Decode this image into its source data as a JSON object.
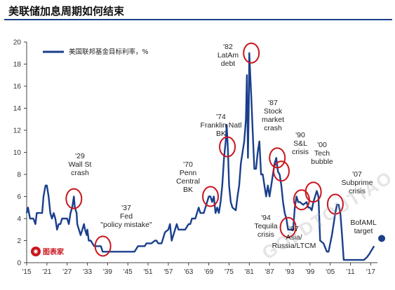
{
  "title": "美联储加息周期如何结束",
  "logo_text": "图表家",
  "watermark": "GOLDTOUTIAO",
  "colors": {
    "line": "#1a3f8c",
    "circle": "#c8161d",
    "title_rule": "#1a3f8c"
  },
  "chart_data": {
    "type": "line",
    "legend": "美国联邦基金目标利率，%",
    "ylim": [
      0,
      20
    ],
    "y_ticks": [
      0,
      2,
      4,
      6,
      8,
      10,
      12,
      14,
      16,
      18,
      20
    ],
    "xlim": [
      1915,
      2019
    ],
    "x_ticks": [
      {
        "year": 1915,
        "label": "'15"
      },
      {
        "year": 1921,
        "label": "'21"
      },
      {
        "year": 1927,
        "label": "'27"
      },
      {
        "year": 1933,
        "label": "'33"
      },
      {
        "year": 1939,
        "label": "'39"
      },
      {
        "year": 1945,
        "label": "'45"
      },
      {
        "year": 1951,
        "label": "'51"
      },
      {
        "year": 1957,
        "label": "'57"
      },
      {
        "year": 1963,
        "label": "'63"
      },
      {
        "year": 1969,
        "label": "'69"
      },
      {
        "year": 1975,
        "label": "'75"
      },
      {
        "year": 1981,
        "label": "'81"
      },
      {
        "year": 1987,
        "label": "'87"
      },
      {
        "year": 1993,
        "label": "'93"
      },
      {
        "year": 1999,
        "label": "'99"
      },
      {
        "year": 2005,
        "label": "'05"
      },
      {
        "year": 2011,
        "label": "'11"
      },
      {
        "year": 2017,
        "label": "'17"
      }
    ],
    "series": [
      {
        "x": [
          1915,
          1915.4,
          1916,
          1917,
          1917.6,
          1918,
          1919,
          1919.6,
          1920,
          1920.6,
          1921,
          1921.5,
          1922,
          1922.5,
          1923,
          1923.5,
          1924,
          1924.5,
          1925,
          1925.5,
          1926,
          1926.5,
          1927,
          1927.5,
          1928,
          1928.5,
          1929,
          1929.3,
          1929.8,
          1930,
          1930.5,
          1931,
          1931.5,
          1932,
          1932.3,
          1932.8,
          1933,
          1933.4,
          1934,
          1935,
          1936,
          1937,
          1937.5,
          1938,
          1939,
          1940,
          1941,
          1942,
          1943,
          1944,
          1945,
          1946,
          1947,
          1948,
          1948.5,
          1949,
          1950,
          1950.5,
          1951,
          1952,
          1953,
          1953.5,
          1954,
          1955,
          1955.5,
          1956,
          1957,
          1957.5,
          1958,
          1958.5,
          1959,
          1959.5,
          1960,
          1961,
          1962,
          1963,
          1963.5,
          1964,
          1965,
          1965.5,
          1966,
          1966.5,
          1967,
          1967.5,
          1968,
          1968.5,
          1969,
          1969.5,
          1970,
          1970.5,
          1971,
          1971.5,
          1972,
          1972.5,
          1973,
          1973.5,
          1974,
          1974.3,
          1974.7,
          1975,
          1975.5,
          1976,
          1977,
          1977.5,
          1978,
          1978.5,
          1979,
          1979.5,
          1980,
          1980.3,
          1980.6,
          1980.9,
          1981,
          1981.3,
          1981.6,
          1982,
          1982.5,
          1983,
          1983.5,
          1984,
          1984.5,
          1985,
          1985.5,
          1986,
          1986.5,
          1987,
          1987.5,
          1988,
          1988.5,
          1989,
          1989.5,
          1990,
          1990.5,
          1991,
          1991.5,
          1992,
          1992.5,
          1993,
          1994,
          1994.5,
          1995,
          1995.5,
          1996,
          1997,
          1998,
          1998.5,
          1999,
          1999.5,
          2000,
          2000.5,
          2001,
          2001.5,
          2002,
          2003,
          2004,
          2004.5,
          2005,
          2005.5,
          2006,
          2006.5,
          2007,
          2007.5,
          2008,
          2008.5,
          2009,
          2010,
          2011,
          2012,
          2013,
          2014,
          2015,
          2015.9,
          2016.5,
          2017,
          2017.5,
          2018
        ],
        "y": [
          4.5,
          5,
          4,
          4,
          3.5,
          4.5,
          4.5,
          4.5,
          6,
          7,
          7,
          6,
          4.5,
          4,
          4.5,
          4,
          3,
          3.5,
          3.5,
          4,
          4,
          4,
          4,
          3.5,
          4.5,
          5,
          6,
          5,
          4.5,
          3.5,
          3,
          2.5,
          3,
          3.5,
          3,
          2.5,
          3,
          2,
          2,
          1.5,
          1.5,
          1.5,
          1,
          1,
          1,
          1,
          1,
          1,
          1,
          1,
          1,
          1,
          1,
          1.5,
          1.5,
          1.5,
          1.5,
          1.75,
          1.75,
          1.75,
          2,
          2,
          1.75,
          1.75,
          2.25,
          2.75,
          3,
          3.5,
          2,
          2.5,
          3,
          3.5,
          3,
          3,
          3,
          3.5,
          3.5,
          4,
          4,
          4.5,
          5,
          4.5,
          4.5,
          4.5,
          5,
          5.5,
          6,
          6,
          5.5,
          6,
          4.5,
          5,
          4.5,
          5.5,
          7,
          9.5,
          11,
          12.5,
          10,
          7,
          5.5,
          5,
          4.75,
          6,
          7,
          9,
          10,
          11,
          13,
          17,
          9.5,
          15,
          19,
          17,
          15,
          12,
          8.5,
          8.5,
          10,
          11,
          8,
          8,
          7,
          6,
          7,
          6,
          7,
          8,
          9,
          9.5,
          8.25,
          8,
          7,
          5.5,
          4.5,
          4,
          3,
          3,
          3,
          5,
          6,
          5.5,
          5.5,
          5.25,
          5.5,
          5,
          5,
          4.75,
          5.5,
          6,
          6.5,
          6,
          2,
          1.75,
          1,
          1,
          1.75,
          2.5,
          3.5,
          4.5,
          5.25,
          5.25,
          4.5,
          2.5,
          0.25,
          0.25,
          0.25,
          0.25,
          0.25,
          0.25,
          0.25,
          0.5,
          0.75,
          1,
          1.25,
          1.5
        ]
      }
    ],
    "annotations": [
      {
        "lines": [
          "'29",
          "Wall St",
          "crash"
        ],
        "circle_year": 1929,
        "circle_rate": 5.8
      },
      {
        "lines": [
          "'37",
          "Fed",
          "\"policy mistake\""
        ],
        "circle_year": 1937.6,
        "circle_rate": 1.5
      },
      {
        "lines": [
          "'70",
          "Penn",
          "Central",
          "BK"
        ],
        "circle_year": 1969.5,
        "circle_rate": 6
      },
      {
        "lines": [
          "'74",
          "Franklin Natl",
          "BK"
        ],
        "circle_year": 1974.5,
        "circle_rate": 10.5
      },
      {
        "lines": [
          "'82",
          "LatAm",
          "debt"
        ],
        "circle_year": 1981.6,
        "circle_rate": 19
      },
      {
        "lines": [
          "'87",
          "Stock",
          "market",
          "crash"
        ],
        "circle_year": 1989.3,
        "circle_rate": 9.5
      },
      {
        "lines": [
          "'90",
          "S&L",
          "crisis"
        ],
        "circle_year": 1990.5,
        "circle_rate": 8.3
      },
      {
        "lines": [
          "'94",
          "Tequila",
          "crisis"
        ],
        "circle_year": 1992.5,
        "circle_rate": 3.2
      },
      {
        "lines": [
          "'97",
          "Asia/",
          "Russia/LTCM"
        ],
        "circle_year": 1996.5,
        "circle_rate": 5.7
      },
      {
        "lines": [
          "'00",
          "Tech",
          "bubble"
        ],
        "circle_year": 2000,
        "circle_rate": 6.4
      },
      {
        "lines": [
          "'07",
          "Subprime",
          "crisis"
        ],
        "circle_year": 2006.5,
        "circle_rate": 5.3
      },
      {
        "lines": [
          "BofAML",
          "target"
        ],
        "point_year": 2018.8,
        "point_rate": 2.2
      }
    ]
  }
}
